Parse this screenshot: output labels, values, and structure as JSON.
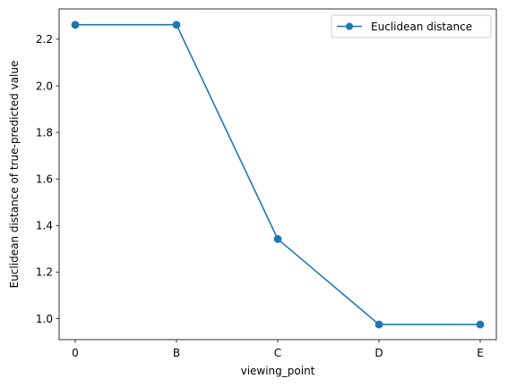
{
  "chart_data": {
    "type": "line",
    "categories": [
      "0",
      "B",
      "C",
      "D",
      "E"
    ],
    "series": [
      {
        "name": "Euclidean distance",
        "values": [
          2.262,
          2.262,
          1.342,
          0.975,
          0.975
        ],
        "color": "#1f77b4",
        "marker": "circle"
      }
    ],
    "xlabel": "viewing_point",
    "ylabel": "Euclidean distance of true-predicted value",
    "ylim": [
      0.91,
      2.33
    ],
    "yticks": [
      "1.0",
      "1.2",
      "1.4",
      "1.6",
      "1.8",
      "2.0",
      "2.2"
    ],
    "grid": false,
    "legend_position": "upper right"
  }
}
